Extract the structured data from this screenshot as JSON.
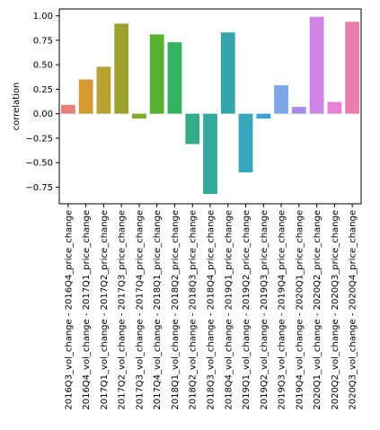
{
  "chart_data": {
    "type": "bar",
    "ylabel": "correlation",
    "xlabel": "",
    "ylim": [
      -0.92,
      1.07
    ],
    "yticks": [
      -0.75,
      -0.5,
      -0.25,
      0.0,
      0.25,
      0.5,
      0.75,
      1.0
    ],
    "ytick_labels": [
      "−0.75",
      "−0.50",
      "−0.25",
      "0.00",
      "0.25",
      "0.50",
      "0.75",
      "1.00"
    ],
    "grid": false,
    "categories": [
      "2016Q3_vol_change - 2016Q4_price_change",
      "2016Q4_vol_change - 2017Q1_price_change",
      "2017Q1_vol_change - 2017Q2_price_change",
      "2017Q2_vol_change - 2017Q3_price_change",
      "2017Q3_vol_change - 2017Q4_price_change",
      "2017Q4_vol_change - 2018Q1_price_change",
      "2018Q1_vol_change - 2018Q2_price_change",
      "2018Q2_vol_change - 2018Q3_price_change",
      "2018Q3_vol_change - 2018Q4_price_change",
      "2018Q4_vol_change - 2019Q1_price_change",
      "2019Q1_vol_change - 2019Q2_price_change",
      "2019Q2_vol_change - 2019Q3_price_change",
      "2019Q3_vol_change - 2019Q4_price_change",
      "2019Q4_vol_change - 2020Q1_price_change",
      "2020Q1_vol_change - 2020Q2_price_change",
      "2020Q2_vol_change - 2020Q3_price_change",
      "2020Q3_vol_change - 2020Q4_price_change"
    ],
    "values": [
      0.09,
      0.35,
      0.48,
      0.92,
      -0.05,
      0.81,
      0.73,
      -0.31,
      -0.82,
      0.83,
      -0.6,
      -0.05,
      0.29,
      0.07,
      0.99,
      0.12,
      0.94
    ],
    "colors": [
      "#e8817c",
      "#d39a32",
      "#b9a232",
      "#9ea12e",
      "#80a82e",
      "#58b032",
      "#36b061",
      "#34ad87",
      "#34a89c",
      "#36a4aa",
      "#38a5bd",
      "#39a0d0",
      "#7ea6e8",
      "#a68ce8",
      "#d085e6",
      "#e681d3",
      "#e87fac"
    ]
  }
}
